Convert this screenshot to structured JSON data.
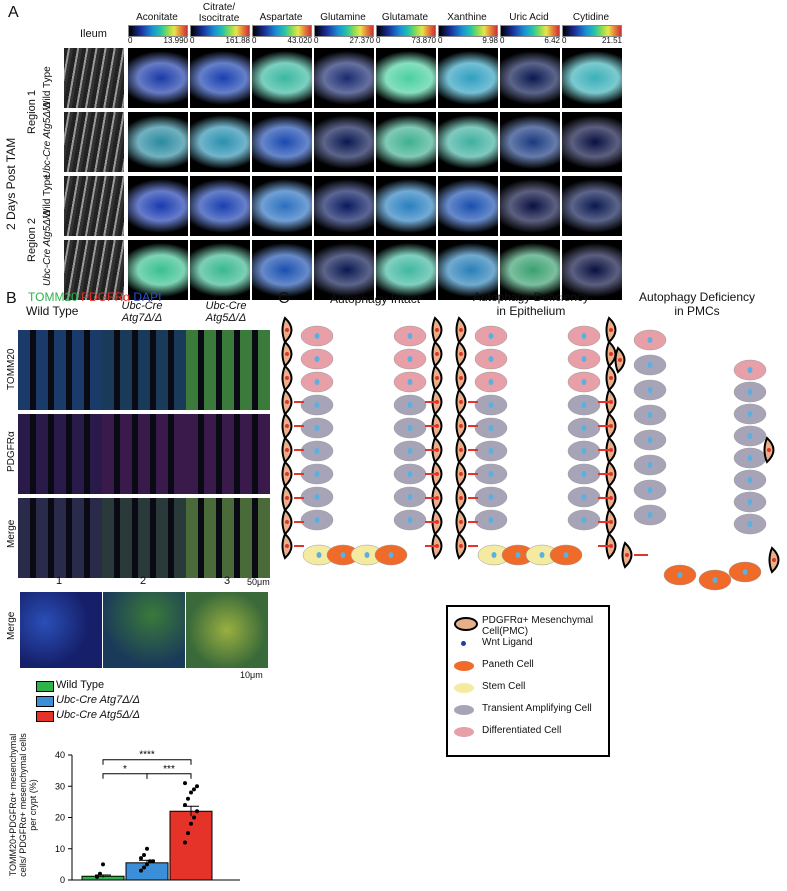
{
  "panel_a": {
    "label": "A",
    "side_label": "2 Days Post TAM",
    "first_col": "Ileum",
    "columns": [
      {
        "name": "Aconitate",
        "max": "13.990"
      },
      {
        "name": "Citrate/\nIsocitrate",
        "max": "161.88"
      },
      {
        "name": "Aspartate",
        "max": "43.020"
      },
      {
        "name": "Glutamine",
        "max": "27.370"
      },
      {
        "name": "Glutamate",
        "max": "73.870"
      },
      {
        "name": "Xanthine",
        "max": "9.98"
      },
      {
        "name": "Uric Acid",
        "max": "6.42"
      },
      {
        "name": "Cytidine",
        "max": "21.51"
      }
    ],
    "zero": "0",
    "regions": [
      "Region 1",
      "Region 2"
    ],
    "genotypes": [
      "Wild Type",
      "Ubc-Cre Atg5Δ/Δ"
    ]
  },
  "panel_b": {
    "label": "B",
    "stain_tomm20": "TOMM20",
    "stain_pdgfra": "PDGFRα",
    "stain_dapi": "DAPI",
    "col_wt": "Wild Type",
    "col_atg7": "Ubc-Cre Atg7Δ/Δ",
    "col_atg5": "Ubc-Cre Atg5Δ/Δ",
    "rows": [
      "TOMM20",
      "PDGFRα",
      "Merge"
    ],
    "zoom_row": "Merge",
    "box_numbers": [
      "1",
      "2",
      "3"
    ],
    "scale_big": "50μm",
    "scale_small": "10μm"
  },
  "legend_bar": [
    {
      "name": "Wild Type",
      "color": "#2db34a"
    },
    {
      "name": "Ubc-Cre Atg7Δ/Δ",
      "color": "#3b8fd9"
    },
    {
      "name": "Ubc-Cre Atg5Δ/Δ",
      "color": "#e63329"
    }
  ],
  "chart_data": {
    "type": "bar",
    "categories": [
      "Wild Type",
      "Ubc-Cre Atg7Δ/Δ",
      "Ubc-Cre Atg5Δ/Δ"
    ],
    "values": [
      1.2,
      5.5,
      22
    ],
    "errors": [
      0.4,
      0.8,
      1.6
    ],
    "ylabel": "TOMM20+PDGFRα+ mesenchymal cells/ PDGFRα+ mesenchymal cells per crypt (%)",
    "ylim": [
      0,
      40
    ],
    "yticks": [
      "0",
      "10",
      "20",
      "30",
      "40"
    ],
    "significance": [
      {
        "pair": [
          0,
          1
        ],
        "label": "*"
      },
      {
        "pair": [
          1,
          2
        ],
        "label": "***"
      },
      {
        "pair": [
          0,
          2
        ],
        "label": "****"
      }
    ]
  },
  "panel_c": {
    "label": "C",
    "titles": [
      "Autophagy Intact",
      "Autophagy Deficiency\nin Epithelium",
      "Autophagy Deficiency\nin PMCs"
    ],
    "legend": [
      {
        "name": "PDGFRα+ Mesenchymal Cell(PMC)",
        "color": "#e8b08a"
      },
      {
        "name": "Wnt Ligand",
        "color": "#1a3fa8"
      },
      {
        "name": "Paneth Cell",
        "color": "#f06a2a"
      },
      {
        "name": "Stem Cell",
        "color": "#f5eba0"
      },
      {
        "name": "Transient Amplifying Cell",
        "color": "#a8a4b8"
      },
      {
        "name": "Differentiated Cell",
        "color": "#e8a0a8"
      }
    ]
  }
}
